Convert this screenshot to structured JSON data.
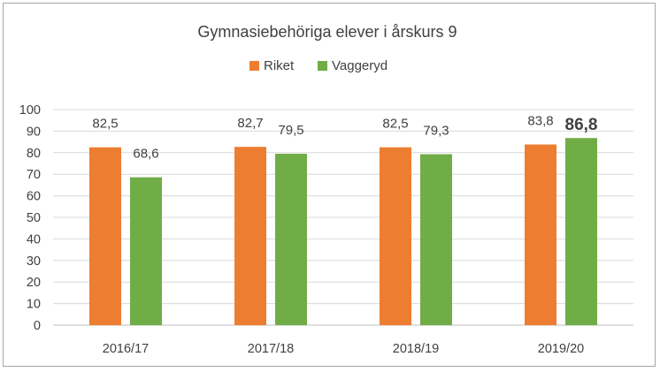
{
  "chart_data": {
    "type": "bar",
    "title": "Gymnasiebehöriga elever i årskurs 9",
    "categories": [
      "2016/17",
      "2017/18",
      "2018/19",
      "2019/20"
    ],
    "series": [
      {
        "name": "Riket",
        "color": "#ED7D31",
        "values": [
          82.5,
          82.7,
          82.5,
          83.8
        ],
        "labels": [
          "82,5",
          "82,7",
          "82,5",
          "83,8"
        ]
      },
      {
        "name": "Vaggeryd",
        "color": "#70AD47",
        "values": [
          68.6,
          79.5,
          79.3,
          86.8
        ],
        "labels": [
          "68,6",
          "79,5",
          "79,3",
          "86,8"
        ]
      }
    ],
    "emphasized_label": {
      "series": 1,
      "index": 3
    },
    "yticks": [
      "0",
      "10",
      "20",
      "30",
      "40",
      "50",
      "60",
      "70",
      "80",
      "90",
      "100"
    ],
    "ylim": [
      0,
      100
    ],
    "grid": true,
    "legend_position": "top-center",
    "xlabel": "",
    "ylabel": ""
  }
}
